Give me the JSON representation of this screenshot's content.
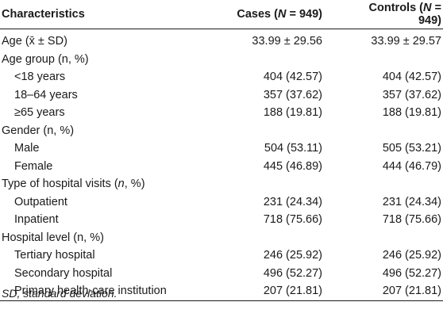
{
  "header": {
    "characteristics": "Characteristics",
    "cases_prefix": "Cases (",
    "cases_n": "N",
    "cases_suffix": " = 949)",
    "controls_prefix": "Controls (",
    "controls_n": "N",
    "controls_suffix": " = 949)"
  },
  "rows": [
    {
      "label": "Age (x̄ ± SD)",
      "cases": "33.99 ± 29.56",
      "controls": "33.99 ± 29.57",
      "indent": false
    },
    {
      "label": "Age group (n, %)",
      "cases": "",
      "controls": "",
      "indent": false
    },
    {
      "label": "<18 years",
      "cases": "404 (42.57)",
      "controls": "404 (42.57)",
      "indent": true
    },
    {
      "label": "18–64 years",
      "cases": "357 (37.62)",
      "controls": "357 (37.62)",
      "indent": true
    },
    {
      "label": "≥65 years",
      "cases": "188 (19.81)",
      "controls": "188 (19.81)",
      "indent": true
    },
    {
      "label": "Gender (n, %)",
      "cases": "",
      "controls": "",
      "indent": false
    },
    {
      "label": "Male",
      "cases": "504 (53.11)",
      "controls": "505 (53.21)",
      "indent": true
    },
    {
      "label": "Female",
      "cases": "445 (46.89)",
      "controls": "444 (46.79)",
      "indent": true
    },
    {
      "label_prefix": "Type of hospital visits (",
      "label_n": "n",
      "label_suffix": ", %)",
      "cases": "",
      "controls": "",
      "indent": false
    },
    {
      "label": "Outpatient",
      "cases": "231 (24.34)",
      "controls": "231 (24.34)",
      "indent": true
    },
    {
      "label": "Inpatient",
      "cases": "718 (75.66)",
      "controls": "718 (75.66)",
      "indent": true
    },
    {
      "label": "Hospital level (n, %)",
      "cases": "",
      "controls": "",
      "indent": false
    },
    {
      "label": "Tertiary hospital",
      "cases": "246 (25.92)",
      "controls": "246 (25.92)",
      "indent": true
    },
    {
      "label": "Secondary hospital",
      "cases": "496 (52.27)",
      "controls": "496 (52.27)",
      "indent": true
    },
    {
      "label": "Primary health-care institution",
      "cases": "207 (21.81)",
      "controls": "207 (21.81)",
      "indent": true
    }
  ],
  "footnote": "SD, standard deviation."
}
